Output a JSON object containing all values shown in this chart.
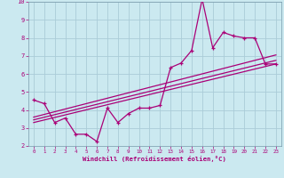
{
  "xlabel": "Windchill (Refroidissement éolien,°C)",
  "xlim": [
    -0.5,
    23.5
  ],
  "ylim": [
    2,
    10
  ],
  "xticks": [
    0,
    1,
    2,
    3,
    4,
    5,
    6,
    7,
    8,
    9,
    10,
    11,
    12,
    13,
    14,
    15,
    16,
    17,
    18,
    19,
    20,
    21,
    22,
    23
  ],
  "yticks": [
    2,
    3,
    4,
    5,
    6,
    7,
    8,
    9,
    10
  ],
  "bg_color": "#cbe9f0",
  "line_color": "#aa0077",
  "grid_color": "#aaccd8",
  "jagged_x": [
    0,
    1,
    2,
    3,
    4,
    5,
    6,
    7,
    8,
    9,
    10,
    11,
    12,
    13,
    14,
    15,
    16,
    17,
    18,
    19,
    20,
    21,
    22,
    23
  ],
  "jagged_y": [
    4.55,
    4.35,
    3.3,
    3.55,
    2.65,
    2.65,
    2.25,
    4.1,
    3.3,
    3.8,
    4.1,
    4.1,
    4.25,
    6.35,
    6.6,
    7.3,
    10.15,
    7.45,
    8.3,
    8.1,
    8.0,
    8.0,
    6.55,
    6.55
  ],
  "trend1_x": [
    0,
    23
  ],
  "trend1_y": [
    3.6,
    7.05
  ],
  "trend2_x": [
    0,
    23
  ],
  "trend2_y": [
    3.45,
    6.75
  ],
  "trend3_x": [
    0,
    23
  ],
  "trend3_y": [
    3.3,
    6.55
  ]
}
